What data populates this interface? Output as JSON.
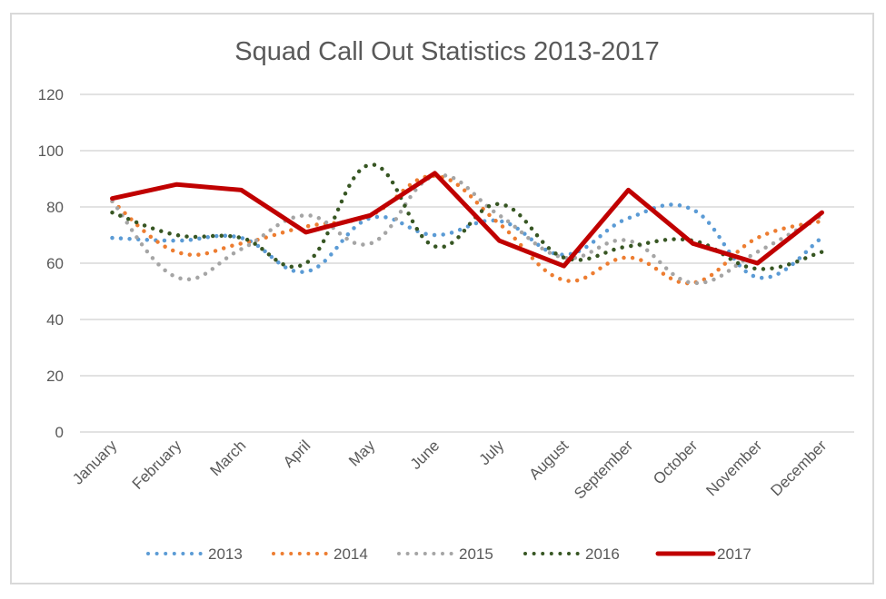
{
  "chart_data": {
    "type": "line",
    "title": "Squad Call Out Statistics 2013-2017",
    "xlabel": "",
    "ylabel": "",
    "ylim": [
      0,
      120
    ],
    "yticks": [
      "0",
      "20",
      "40",
      "60",
      "80",
      "100",
      "120"
    ],
    "grid": true,
    "legend_position": "bottom",
    "categories": [
      "January",
      "February",
      "March",
      "April",
      "May",
      "June",
      "July",
      "August",
      "September",
      "October",
      "November",
      "December"
    ],
    "series": [
      {
        "name": "2013",
        "color": "#5b9bd5",
        "style": "dotted-smooth",
        "values": [
          69,
          68,
          69,
          57,
          76,
          70,
          75,
          63,
          76,
          79,
          55,
          69
        ]
      },
      {
        "name": "2014",
        "color": "#ed7d31",
        "style": "dotted-smooth",
        "values": [
          82,
          64,
          67,
          73,
          77,
          91,
          74,
          54,
          62,
          53,
          69,
          75
        ]
      },
      {
        "name": "2015",
        "color": "#a5a5a5",
        "style": "dotted-smooth",
        "values": [
          82,
          55,
          65,
          77,
          67,
          91,
          77,
          62,
          68,
          53,
          64,
          77
        ]
      },
      {
        "name": "2016",
        "color": "#375623",
        "style": "dotted-smooth",
        "values": [
          78,
          70,
          69,
          60,
          95,
          66,
          81,
          62,
          66,
          68,
          58,
          64
        ]
      },
      {
        "name": "2017",
        "color": "#c00000",
        "style": "solid",
        "values": [
          83,
          88,
          86,
          71,
          77,
          92,
          68,
          59,
          86,
          67,
          60,
          78
        ]
      }
    ]
  }
}
